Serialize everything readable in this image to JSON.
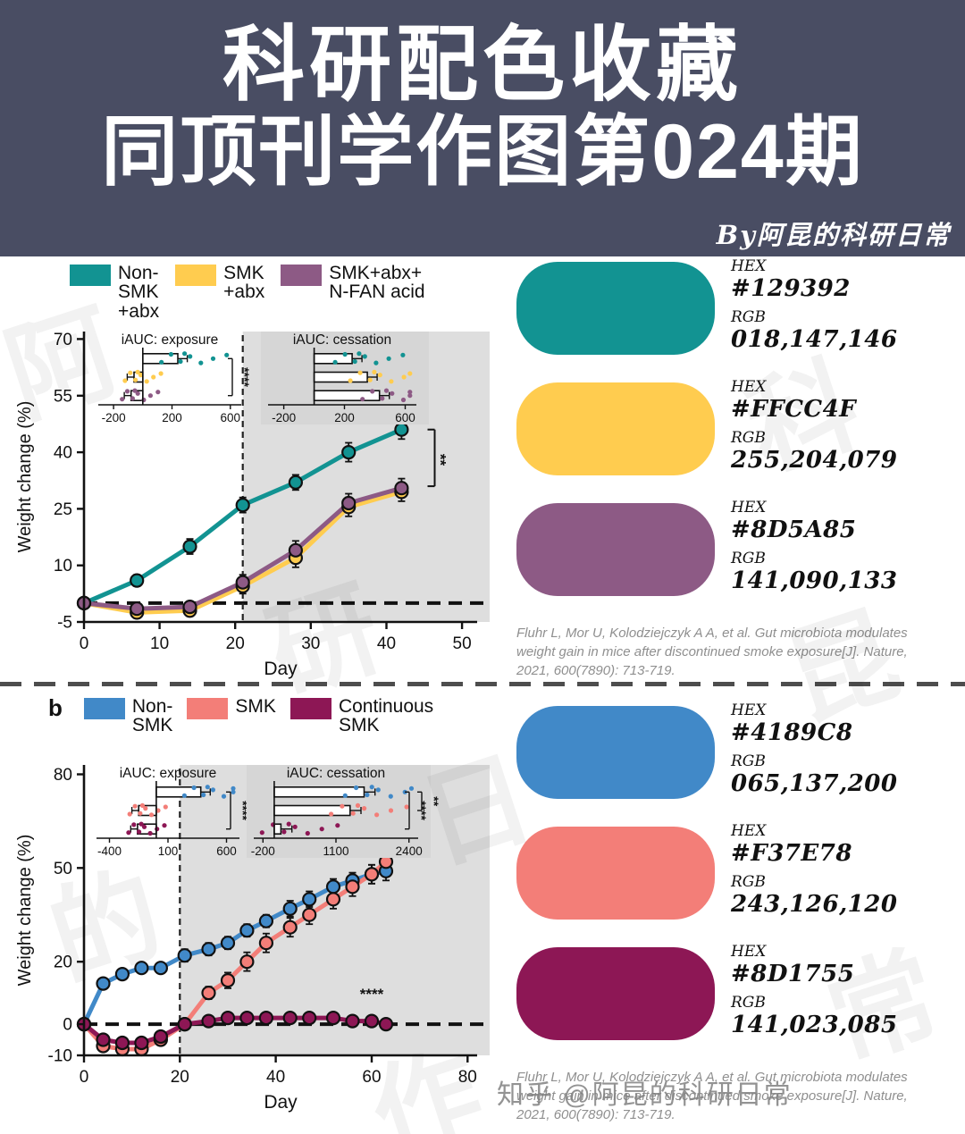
{
  "header": {
    "title_line1": "科研配色收藏",
    "title_line2": "同顶刊学作图第024期",
    "byline": "By阿昆的科研日常",
    "bg_color": "#494d63"
  },
  "watermark": {
    "bottom": "知乎 @阿昆的科研日常",
    "faint_chars": [
      "阿",
      "科",
      "研",
      "昆",
      "的",
      "日",
      "常",
      "作"
    ]
  },
  "sections": [
    {
      "panel_label": "",
      "legend": [
        {
          "label": "Non-\nSMK\n+abx",
          "color": "#129392"
        },
        {
          "label": "SMK\n+abx",
          "color": "#FFCC4F"
        },
        {
          "label": "SMK+abx+\nN-FAN acid",
          "color": "#8D5A85"
        }
      ],
      "swatches": [
        {
          "hex_label": "HEX",
          "hex": "#129392",
          "rgb_label": "RGB",
          "rgb": "018,147,146"
        },
        {
          "hex_label": "HEX",
          "hex": "#FFCC4F",
          "rgb_label": "RGB",
          "rgb": "255,204,079"
        },
        {
          "hex_label": "HEX",
          "hex": "#8D5A85",
          "rgb_label": "RGB",
          "rgb": "141,090,133"
        }
      ],
      "citation": "Fluhr L, Mor U, Kolodziejczyk A A, et al. Gut microbiota modulates weight gain in mice after discontinued smoke exposure[J]. Nature, 2021, 600(7890): 713-719."
    },
    {
      "panel_label": "b",
      "legend": [
        {
          "label": "Non-\nSMK",
          "color": "#4189C8"
        },
        {
          "label": "SMK",
          "color": "#F37E78"
        },
        {
          "label": "Continuous\nSMK",
          "color": "#8D1755"
        }
      ],
      "swatches": [
        {
          "hex_label": "HEX",
          "hex": "#4189C8",
          "rgb_label": "RGB",
          "rgb": "065,137,200"
        },
        {
          "hex_label": "HEX",
          "hex": "#F37E78",
          "rgb_label": "RGB",
          "rgb": "243,126,120"
        },
        {
          "hex_label": "HEX",
          "hex": "#8D1755",
          "rgb_label": "RGB",
          "rgb": "141,023,085"
        }
      ],
      "citation": "Fluhr L, Mor U, Kolodziejczyk A A, et al. Gut microbiota modulates weight gain in mice after discontinued smoke exposure[J]. Nature, 2021, 600(7890): 713-719."
    }
  ],
  "chart_data": [
    {
      "type": "line",
      "title": "",
      "xlabel": "Day",
      "ylabel": "Weight change (%)",
      "xlim": [
        0,
        52
      ],
      "ylim": [
        -5,
        72
      ],
      "xticks": [
        0,
        10,
        20,
        30,
        40,
        50
      ],
      "yticks": [
        -5,
        10,
        25,
        40,
        55,
        70
      ],
      "grid": false,
      "shade_from_x": 21,
      "dashed_vline_x": 21,
      "dashed_hline_y": 0,
      "x": [
        0,
        7,
        14,
        21,
        28,
        35,
        42
      ],
      "series": [
        {
          "name": "Non-SMK+abx",
          "color": "#129392",
          "y": [
            0,
            6,
            15,
            26,
            32,
            40,
            46
          ],
          "err": [
            1,
            1.5,
            2,
            2,
            2,
            2.5,
            2.5
          ]
        },
        {
          "name": "SMK+abx",
          "color": "#FFCC4F",
          "y": [
            0,
            -2.5,
            -2,
            4.5,
            12,
            25.5,
            29.5
          ],
          "err": [
            1,
            1.5,
            1.5,
            2,
            2.5,
            2.5,
            2.5
          ]
        },
        {
          "name": "SMK+abx+N-FAN acid",
          "color": "#8D5A85",
          "y": [
            0,
            -1.5,
            -1,
            5.5,
            14,
            26.5,
            30.5
          ],
          "err": [
            1,
            1.5,
            1.5,
            2,
            2.5,
            2.5,
            2.5
          ]
        }
      ],
      "annotations": [
        {
          "text": "**",
          "x": 46.5,
          "y": 38,
          "rotate": 90,
          "bracket": {
            "x": 44.5,
            "y1": 46,
            "y2": 31
          }
        }
      ],
      "insets": [
        {
          "title": "iAUC: exposure",
          "xlim": [
            -280,
            650
          ],
          "xticks": [
            -200,
            200,
            600
          ],
          "bars": [
            240,
            -60,
            -80
          ],
          "colors": [
            "#129392",
            "#FFCC4F",
            "#8D5A85"
          ],
          "sigs": [
            "****"
          ],
          "bg": "none"
        },
        {
          "title": "iAUC: cessation",
          "xlim": [
            -280,
            650
          ],
          "xticks": [
            -200,
            200,
            600
          ],
          "bars": [
            250,
            350,
            430
          ],
          "colors": [
            "#129392",
            "#FFCC4F",
            "#8D5A85"
          ],
          "sigs": [],
          "bg": "#d6d6d6"
        }
      ]
    },
    {
      "type": "line",
      "title": "",
      "xlabel": "Day",
      "ylabel": "Weight change (%)",
      "xlim": [
        0,
        82
      ],
      "ylim": [
        -10,
        83
      ],
      "xticks": [
        0,
        20,
        40,
        60,
        80
      ],
      "yticks": [
        -10,
        0,
        20,
        50,
        80
      ],
      "grid": false,
      "shade_from_x": 20,
      "dashed_vline_x": 20,
      "dashed_hline_y": 0,
      "x": [
        0,
        4,
        8,
        12,
        16,
        21,
        26,
        30,
        34,
        38,
        43,
        47,
        52,
        56,
        60,
        63
      ],
      "series": [
        {
          "name": "Non-SMK",
          "color": "#4189C8",
          "y": [
            0,
            13,
            16,
            18,
            18,
            22,
            24,
            26,
            30,
            33,
            37,
            40,
            44,
            46,
            48,
            49
          ],
          "err": [
            1,
            1.5,
            1.5,
            1.5,
            1.5,
            2,
            2,
            2,
            2,
            2,
            2.5,
            2.5,
            2.5,
            2.5,
            3,
            3
          ]
        },
        {
          "name": "SMK",
          "color": "#F37E78",
          "y": [
            0,
            -7,
            -8,
            -8,
            -5,
            0,
            10,
            14,
            20,
            26,
            31,
            35,
            40,
            44,
            48,
            52
          ],
          "err": [
            1,
            1.5,
            1.5,
            1.5,
            1.5,
            1.5,
            2,
            2.5,
            3,
            3,
            3,
            3,
            3,
            3,
            3,
            3
          ]
        },
        {
          "name": "Continuous SMK",
          "color": "#8D1755",
          "y": [
            0,
            -5,
            -6,
            -6,
            -4,
            0,
            1,
            2,
            2,
            2,
            2,
            2,
            2,
            1,
            1,
            0
          ],
          "err": [
            1,
            1,
            1,
            1,
            1,
            1,
            1,
            1,
            1,
            1,
            1,
            1,
            1,
            1,
            1,
            1
          ]
        }
      ],
      "annotations": [
        {
          "text": "****",
          "x": 60,
          "y": 8,
          "rotate": 0
        }
      ],
      "insets": [
        {
          "title": "iAUC: exposure",
          "xlim": [
            -480,
            680
          ],
          "xticks": [
            -400,
            100,
            600
          ],
          "bars": [
            380,
            -150,
            -160
          ],
          "colors": [
            "#4189C8",
            "#F37E78",
            "#8D1755"
          ],
          "sigs": [
            "****"
          ],
          "bg": "none"
        },
        {
          "title": "iAUC: cessation",
          "xlim": [
            -300,
            2500
          ],
          "xticks": [
            -200,
            1100,
            2400
          ],
          "bars": [
            1600,
            1350,
            120
          ],
          "colors": [
            "#4189C8",
            "#F37E78",
            "#8D1755"
          ],
          "sigs": [
            "****",
            "**"
          ],
          "bg": "#d6d6d6"
        }
      ]
    }
  ]
}
